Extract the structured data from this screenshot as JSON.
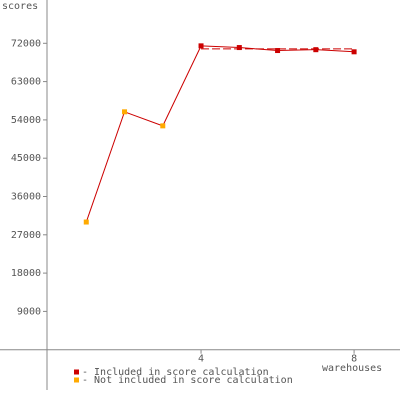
{
  "chart_data": {
    "type": "line",
    "y_label": "scores",
    "x_label": "warehouses",
    "x": [
      1,
      2,
      3,
      4,
      5,
      6,
      7,
      8
    ],
    "xlim": [
      0,
      9.2
    ],
    "xticks": [
      4,
      8
    ],
    "ylim": [
      -9000,
      81000
    ],
    "yticks": [
      9000,
      18000,
      27000,
      36000,
      45000,
      54000,
      63000,
      72000
    ],
    "line_color": "#cc0000",
    "series": [
      {
        "name": "- Included in score calculation",
        "color": "#cc0000",
        "values": [
          null,
          null,
          null,
          71400,
          71000,
          70300,
          70500,
          70000
        ]
      },
      {
        "name": "- Not included in score calculation",
        "color": "#ffaa00",
        "values": [
          30000,
          55900,
          52600,
          null,
          null,
          null,
          null,
          null
        ]
      }
    ],
    "score_line": {
      "value": 70700,
      "x": [
        4,
        8
      ]
    }
  }
}
